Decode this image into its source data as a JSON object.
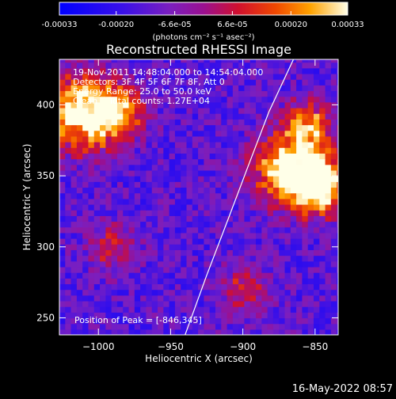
{
  "chart_data": {
    "type": "heatmap",
    "title": "Reconstructed RHESSI Image",
    "xlabel": "Heliocentric X (arcsec)",
    "ylabel": "Heliocentric Y (arcsec)",
    "xlim": [
      -1027,
      -834
    ],
    "ylim": [
      238,
      432
    ],
    "x_ticks": [
      -1000,
      -950,
      -900,
      -850
    ],
    "y_ticks": [
      250,
      300,
      350,
      400
    ],
    "colorbar": {
      "units_label": "(photons cm⁻² s⁻¹ asec⁻²)",
      "range": [
        -0.00033,
        0.00033
      ],
      "tick_values": [
        -0.00033,
        -0.0002,
        -6.6e-05,
        6.6e-05,
        0.0002,
        0.00033
      ],
      "tick_labels": [
        "-0.00033",
        "-0.00020",
        "-6.6e-05",
        "6.6e-05",
        "0.00020",
        "0.00033"
      ],
      "colormap": "red-temperature (blue at negative end)"
    },
    "annotations": [
      "19-Nov-2011 14:48:04.000 to 14:54:04.000",
      "Detectors: 3F 4F 5F 6F 7F 8F, Att 0",
      "Energy Range: 25.0 to 50.0 keV",
      "Clean    Total counts: 1.27E+04"
    ],
    "peak_label": "Position of Peak = [-846,345]",
    "limb_points": [
      [
        -940,
        238
      ],
      [
        -925,
        280
      ],
      [
        -910,
        320
      ],
      [
        -897,
        355
      ],
      [
        -882,
        395
      ],
      [
        -865,
        432
      ]
    ],
    "emission_regions": [
      {
        "x": -1012,
        "y": 395,
        "sigma": 18,
        "amp": 0.9
      },
      {
        "x": -985,
        "y": 395,
        "sigma": 12,
        "amp": 0.55
      },
      {
        "x": -990,
        "y": 300,
        "sigma": 12,
        "amp": 0.35
      },
      {
        "x": -870,
        "y": 355,
        "sigma": 16,
        "amp": 0.75
      },
      {
        "x": -848,
        "y": 345,
        "sigma": 14,
        "amp": 1.0
      },
      {
        "x": -855,
        "y": 385,
        "sigma": 12,
        "amp": 0.6
      },
      {
        "x": -900,
        "y": 270,
        "sigma": 12,
        "amp": 0.3
      }
    ]
  },
  "timestamp": "16-May-2022 08:57"
}
